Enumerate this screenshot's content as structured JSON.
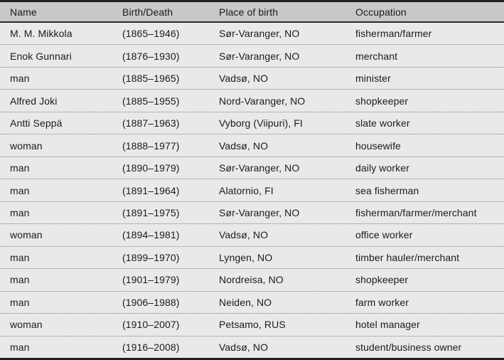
{
  "table": {
    "header": {
      "name": "Name",
      "birth_death": "Birth/Death",
      "place": "Place of birth",
      "occupation": "Occupation"
    },
    "rows": [
      {
        "name": "M. M. Mikkola",
        "birth_death": "(1865–1946)",
        "place": "Sør-Varanger, NO",
        "occupation": "fisherman/farmer"
      },
      {
        "name": "Enok Gunnari",
        "birth_death": "(1876–1930)",
        "place": "Sør-Varanger, NO",
        "occupation": "merchant"
      },
      {
        "name": "man",
        "birth_death": "(1885–1965)",
        "place": "Vadsø, NO",
        "occupation": "minister"
      },
      {
        "name": "Alfred Joki",
        "birth_death": "(1885–1955)",
        "place": "Nord-Varanger, NO",
        "occupation": "shopkeeper"
      },
      {
        "name": "Antti Seppä",
        "birth_death": "(1887–1963)",
        "place": "Vyborg (Viipuri), FI",
        "occupation": "slate worker"
      },
      {
        "name": "woman",
        "birth_death": "(1888–1977)",
        "place": "Vadsø, NO",
        "occupation": "housewife"
      },
      {
        "name": "man",
        "birth_death": "(1890–1979)",
        "place": "Sør-Varanger, NO",
        "occupation": "daily worker"
      },
      {
        "name": "man",
        "birth_death": "(1891–1964)",
        "place": "Alatornio, FI",
        "occupation": "sea fisherman"
      },
      {
        "name": "man",
        "birth_death": "(1891–1975)",
        "place": "Sør-Varanger, NO",
        "occupation": "fisherman/farmer/merchant"
      },
      {
        "name": "woman",
        "birth_death": "(1894–1981)",
        "place": "Vadsø, NO",
        "occupation": "office worker"
      },
      {
        "name": "man",
        "birth_death": "(1899–1970)",
        "place": "Lyngen, NO",
        "occupation": "timber hauler/merchant"
      },
      {
        "name": "man",
        "birth_death": "(1901–1979)",
        "place": "Nordreisa, NO",
        "occupation": "shopkeeper"
      },
      {
        "name": "man",
        "birth_death": "(1906–1988)",
        "place": "Neiden, NO",
        "occupation": "farm worker"
      },
      {
        "name": "woman",
        "birth_death": "(1910–2007)",
        "place": "Petsamo, RUS",
        "occupation": "hotel manager"
      },
      {
        "name": "man",
        "birth_death": "(1916–2008)",
        "place": "Vadsø, NO",
        "occupation": "student/business owner"
      }
    ]
  },
  "colors": {
    "header_bg": "#c8c8c8",
    "row_bg": "#e9e9e9",
    "rule": "#1f1f1f",
    "dotted_divider": "#808080",
    "text": "#1b1b1b"
  }
}
